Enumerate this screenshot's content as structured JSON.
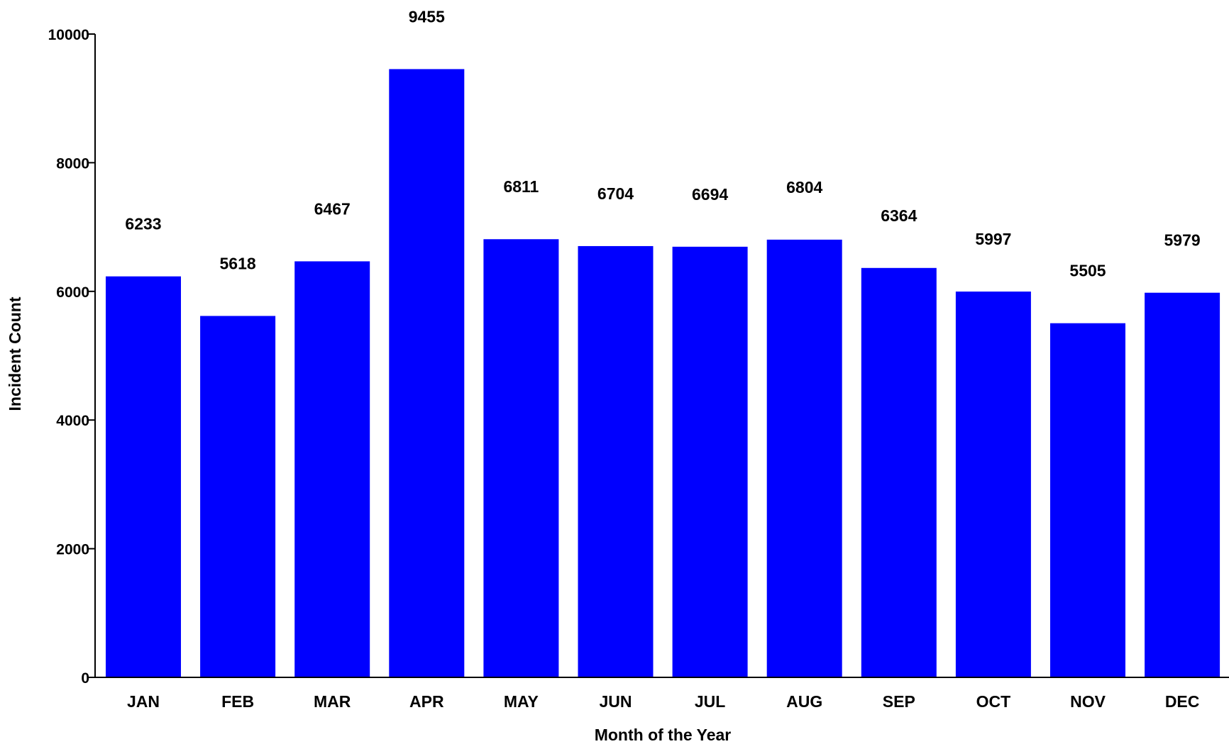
{
  "chart_data": {
    "type": "bar",
    "title": "",
    "xlabel": "Month of the Year",
    "ylabel": "Incident Count",
    "categories": [
      "JAN",
      "FEB",
      "MAR",
      "APR",
      "MAY",
      "JUN",
      "JUL",
      "AUG",
      "SEP",
      "OCT",
      "NOV",
      "DEC"
    ],
    "values": [
      6233,
      5618,
      6467,
      9455,
      6811,
      6704,
      6694,
      6804,
      6364,
      5997,
      5505,
      5979
    ],
    "value_labels": [
      "6233",
      "5618",
      "6467",
      "9455",
      "6811",
      "6704",
      "6694",
      "6804",
      "6364",
      "5997",
      "5505",
      "5979"
    ],
    "ylim": [
      0,
      10000
    ],
    "yticks": [
      0,
      2000,
      4000,
      6000,
      8000,
      10000
    ],
    "ytick_labels": [
      "0",
      "2000",
      "4000",
      "6000",
      "8000",
      "10000"
    ],
    "grid": false,
    "legend": "none",
    "bar_color": "#0000ff",
    "axis_color": "#000000"
  }
}
